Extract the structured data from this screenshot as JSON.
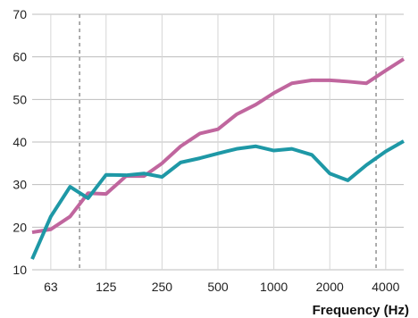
{
  "chart_data": {
    "type": "line",
    "xlabel": "Frequency (Hz)",
    "ylabel": "",
    "x_scale": "log2",
    "xlim": [
      50,
      5000
    ],
    "ylim": [
      10,
      70
    ],
    "yticks": [
      10,
      20,
      30,
      40,
      50,
      60,
      70
    ],
    "xticks": [
      63,
      125,
      250,
      500,
      1000,
      2000,
      4000
    ],
    "xtick_labels": [
      "63",
      "125",
      "250",
      "500",
      "1000",
      "2000",
      "4000"
    ],
    "x": [
      50,
      63,
      80,
      100,
      125,
      160,
      200,
      250,
      315,
      400,
      500,
      630,
      800,
      1000,
      1250,
      1600,
      2000,
      2500,
      3150,
      4000,
      5000
    ],
    "grid": "horizontal and vertical at ticks",
    "reference_lines": [
      90,
      3550
    ],
    "series": [
      {
        "color": "#c0669e",
        "values": [
          18.8,
          19.5,
          22.5,
          28.0,
          27.8,
          32.0,
          32.0,
          35.0,
          39.0,
          42.0,
          43.0,
          46.5,
          48.8,
          51.5,
          53.8,
          54.5,
          54.5,
          54.2,
          53.8,
          56.8,
          59.5
        ]
      },
      {
        "color": "#1e98a6",
        "values": [
          12.5,
          22.5,
          29.5,
          26.8,
          32.3,
          32.2,
          32.6,
          31.8,
          35.2,
          36.2,
          37.3,
          38.4,
          39.0,
          38.0,
          38.4,
          37.0,
          32.6,
          31.0,
          34.6,
          37.8,
          40.2
        ]
      }
    ]
  }
}
